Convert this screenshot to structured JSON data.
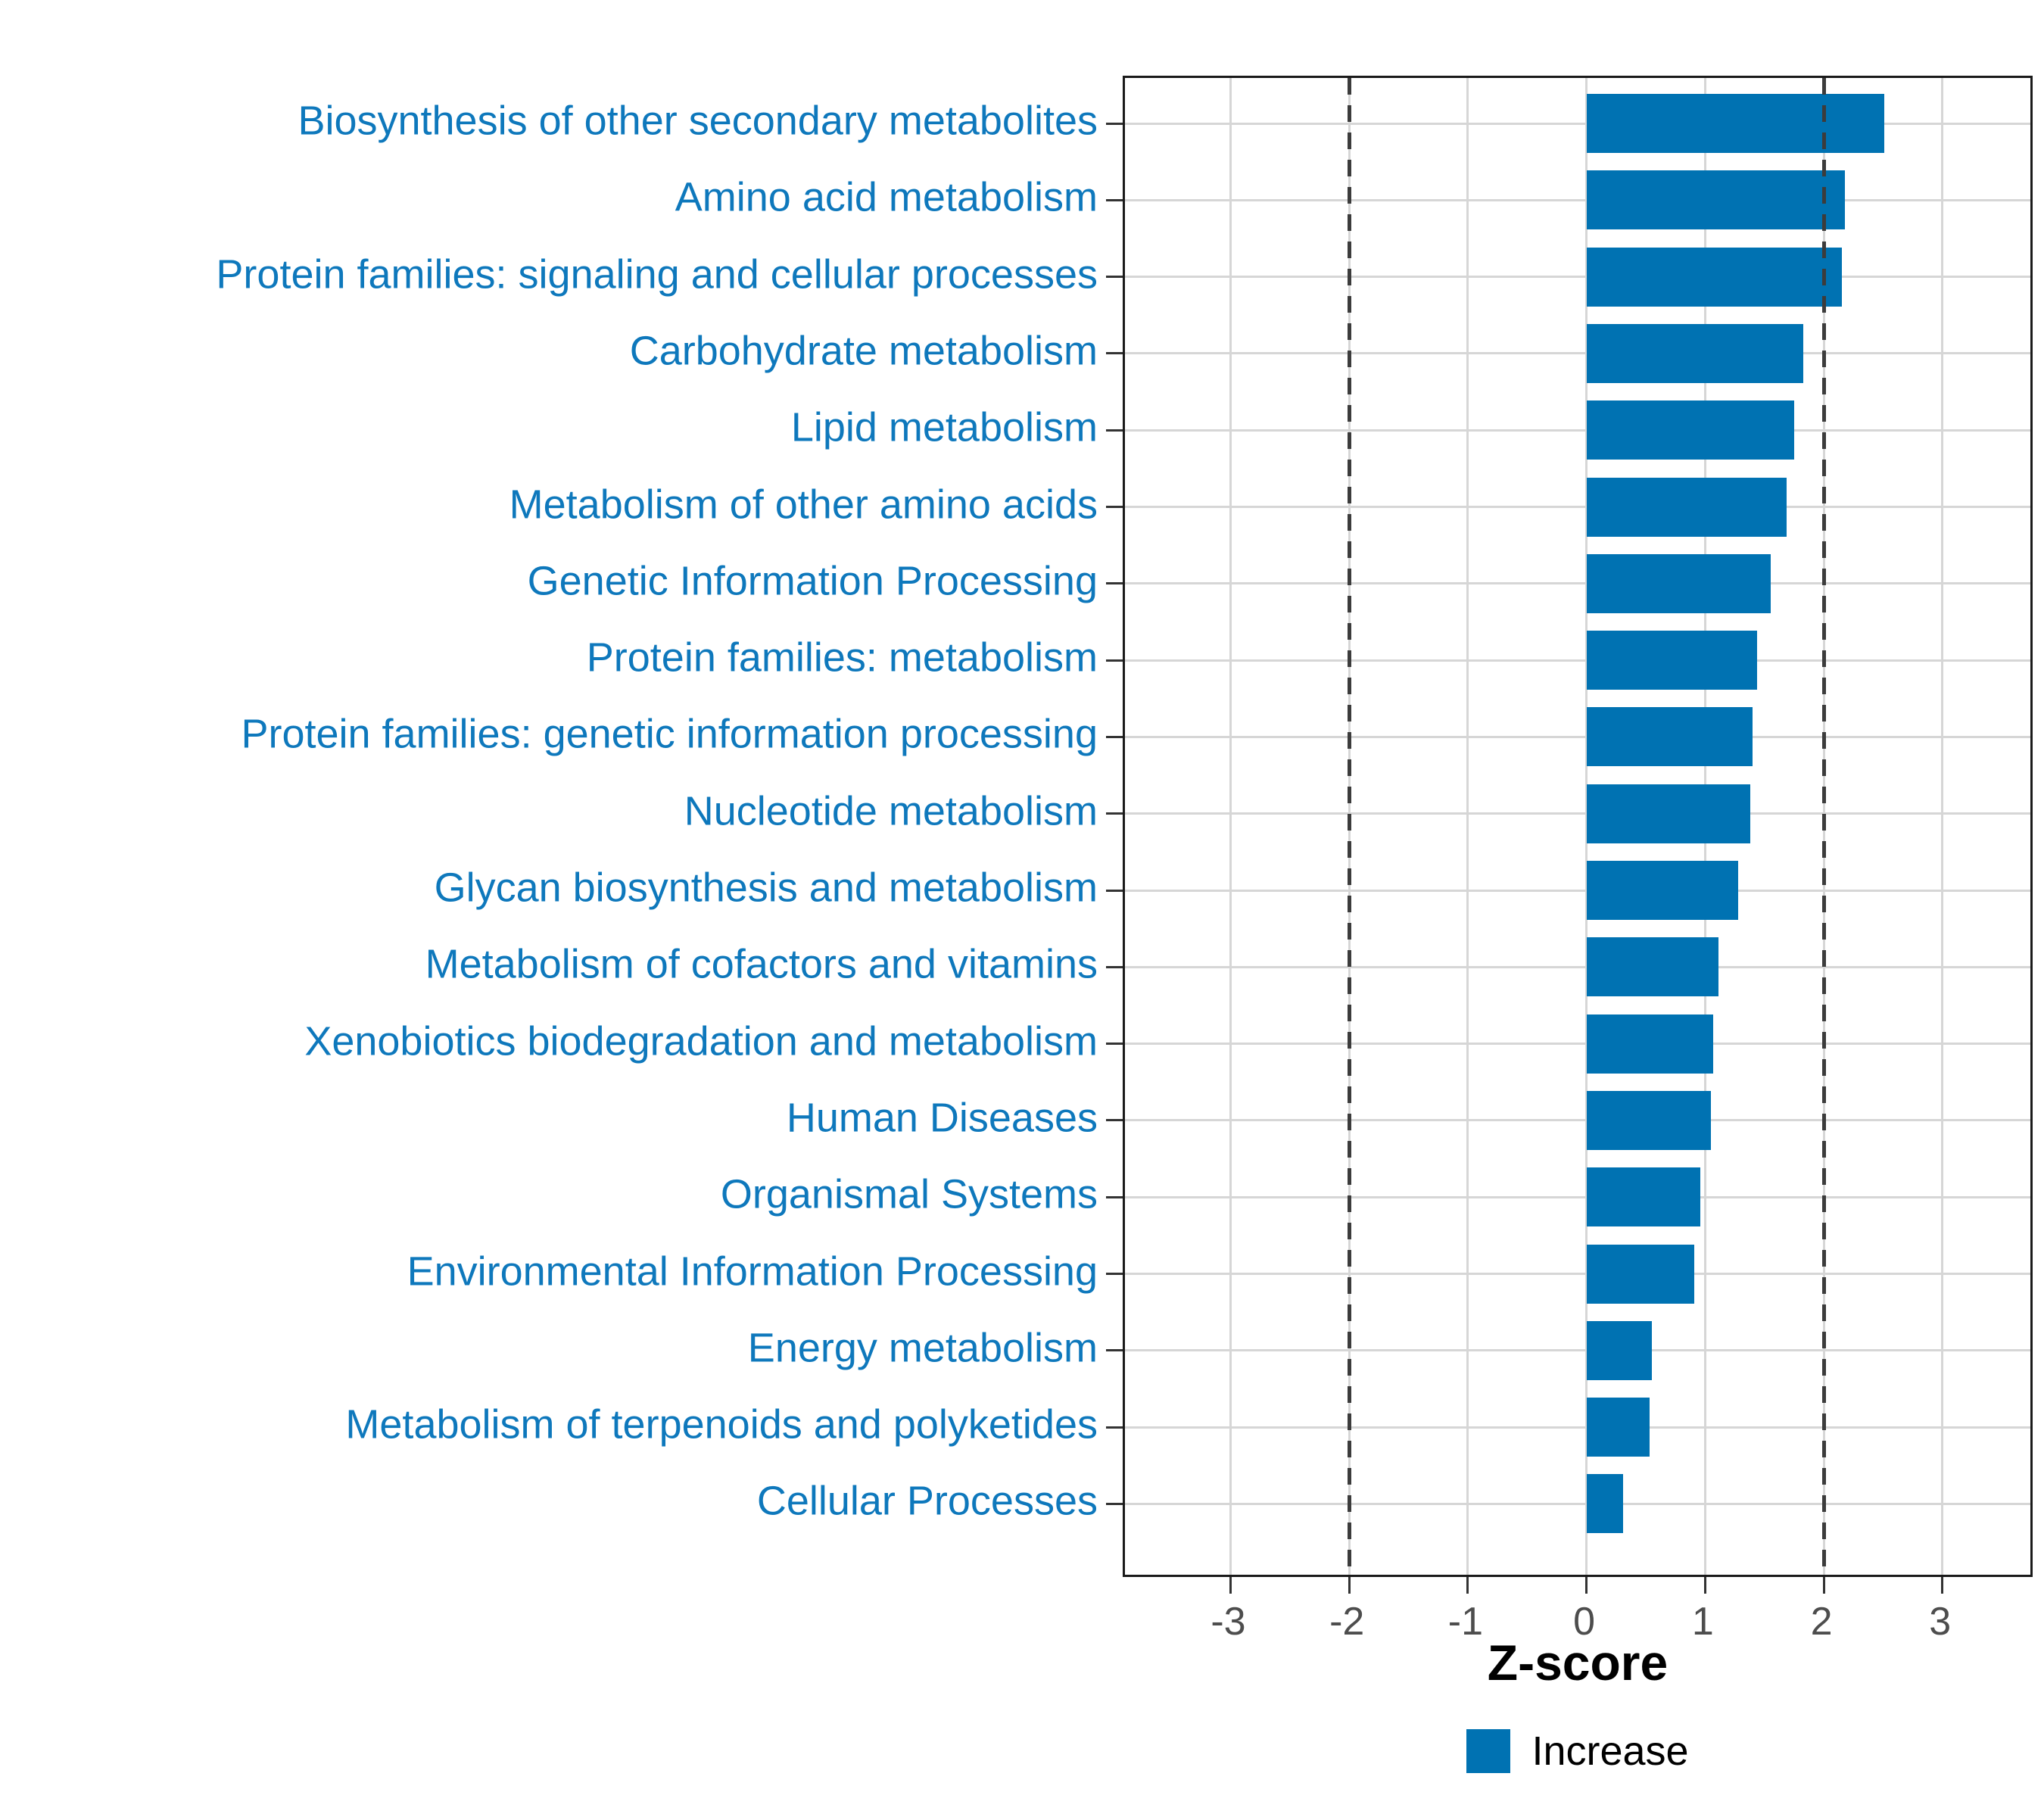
{
  "chart_data": {
    "type": "bar",
    "orientation": "horizontal",
    "title": "",
    "xlabel": "Z-score",
    "ylabel": "",
    "categories": [
      "Biosynthesis of other secondary metabolites",
      "Amino acid metabolism",
      "Protein families: signaling and cellular processes",
      "Carbohydrate metabolism",
      "Lipid metabolism",
      "Metabolism of other amino acids",
      "Genetic Information Processing",
      "Protein families: metabolism",
      "Protein families: genetic information processing",
      "Nucleotide metabolism",
      "Glycan biosynthesis and metabolism",
      "Metabolism of cofactors and vitamins",
      "Xenobiotics biodegradation and metabolism",
      "Human Diseases",
      "Organismal Systems",
      "Environmental Information Processing",
      "Energy metabolism",
      "Metabolism of terpenoids and polyketides",
      "Cellular Processes"
    ],
    "values": [
      2.51,
      2.18,
      2.15,
      1.83,
      1.75,
      1.69,
      1.55,
      1.44,
      1.4,
      1.38,
      1.28,
      1.11,
      1.07,
      1.05,
      0.96,
      0.91,
      0.55,
      0.53,
      0.31
    ],
    "x_tick_labels": [
      "-3",
      "-2",
      "-1",
      "0",
      "1",
      "2",
      "3"
    ],
    "x_tick_values": [
      -3,
      -2,
      -1,
      0,
      1,
      2,
      3
    ],
    "xlim": [
      -3.89,
      3.78
    ],
    "reference_lines": [
      -2,
      2
    ],
    "grid": "major gridlines on, white panel, full black border",
    "legend": {
      "label": "Increase",
      "position": "bottom-center"
    },
    "colors": {
      "bar": "#0072B2",
      "category_label": "#0E78BC",
      "tick_label": "#4D4D4D",
      "axis_title": "#000000",
      "gridline": "#D6D6D6",
      "panel_border": "#1A1A1A",
      "reference_line": "#3C3C3C",
      "background": "#FFFFFF"
    }
  }
}
